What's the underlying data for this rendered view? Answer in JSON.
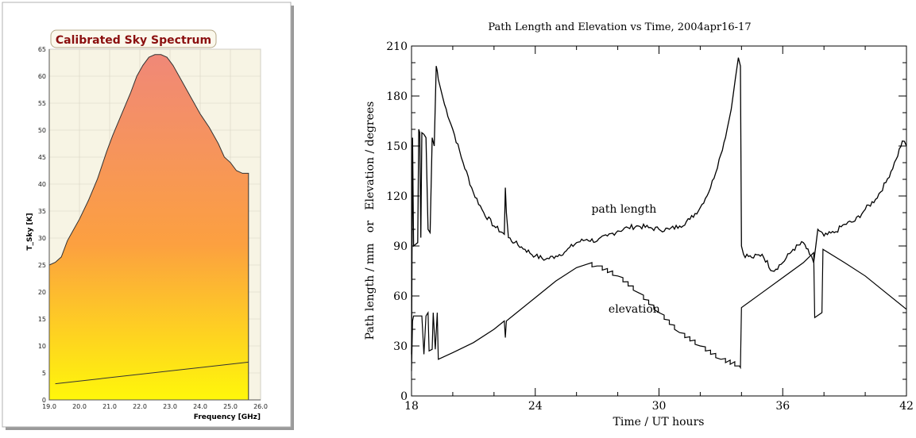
{
  "chart_data": [
    {
      "type": "area",
      "title": "Calibrated Sky Spectrum",
      "xlabel": "Frequency [GHz]",
      "ylabel": "T_Sky [K]",
      "xlim": [
        19.0,
        26.0
      ],
      "ylim": [
        0,
        65
      ],
      "x_ticks": [
        "19.0",
        "20.0",
        "21.0",
        "22.0",
        "23.0",
        "24.0",
        "25.0",
        "26.0"
      ],
      "y_ticks": [
        "0",
        "5",
        "10",
        "15",
        "20",
        "25",
        "30",
        "35",
        "40",
        "45",
        "50",
        "55",
        "60",
        "65"
      ],
      "grid": true,
      "colors": {
        "area_top": "#f08878",
        "area_mid": "#fca040",
        "area_bottom": "#fff70a",
        "plot_bg": "#f7f4e4",
        "title": "#8b1010"
      },
      "series": [
        {
          "values_x": [
            19.0,
            19.2,
            19.4,
            19.6,
            19.8,
            20.0,
            20.3,
            20.6,
            20.9,
            21.1,
            21.4,
            21.7,
            21.9,
            22.1,
            22.3,
            22.5,
            22.7,
            22.9,
            23.1,
            23.4,
            23.7,
            24.0,
            24.3,
            24.6,
            24.8,
            25.0,
            25.2,
            25.4,
            25.6
          ],
          "values_y": [
            25,
            25.5,
            26.5,
            29.5,
            31.5,
            33.5,
            37,
            41,
            46,
            49,
            53,
            57,
            60,
            62,
            63.5,
            64,
            64,
            63.5,
            62,
            59,
            56,
            53,
            50.5,
            47.5,
            45,
            44,
            42.5,
            42,
            42
          ]
        },
        {
          "values_x": [
            19.2,
            25.6
          ],
          "values_y": [
            3.0,
            7.0
          ]
        }
      ]
    },
    {
      "type": "line",
      "title": "Path Length and Elevation vs Time, 2004apr16-17",
      "xlabel": "Time / UT hours",
      "ylabel": "Path length / mm   or   Elevation / degrees",
      "xlim": [
        18,
        42
      ],
      "ylim": [
        0,
        210
      ],
      "x_ticks": [
        "18",
        "24",
        "30",
        "36",
        "42"
      ],
      "y_ticks": [
        "0",
        "30",
        "60",
        "90",
        "120",
        "150",
        "180",
        "210"
      ],
      "grid": false,
      "annotations": [
        "path length",
        "elevation"
      ],
      "series": [
        {
          "x": [
            18.0,
            18.05,
            18.1,
            18.2,
            18.3,
            18.35,
            18.4,
            18.45,
            18.5,
            18.6,
            18.7,
            18.8,
            18.9,
            19.0,
            19.1,
            19.2,
            19.25,
            19.3,
            19.4,
            19.6,
            20.0,
            20.5,
            21.0,
            21.5,
            22.0,
            22.5,
            22.55,
            22.6,
            22.7,
            23.0,
            23.5,
            24.0,
            24.5,
            25.0,
            25.5,
            26.0,
            26.5,
            27.0,
            27.5,
            28.0,
            28.5,
            29.0,
            29.5,
            30.0,
            30.5,
            31.0,
            31.5,
            32.0,
            32.5,
            33.0,
            33.3,
            33.5,
            33.7,
            33.85,
            33.95,
            34.0,
            34.1,
            34.5,
            35.0,
            35.5,
            36.0,
            36.5,
            37.0,
            37.3,
            37.5,
            37.7,
            38.0,
            38.5,
            39.0,
            39.5,
            40.0,
            40.5,
            41.0,
            41.5,
            41.8,
            42.0
          ],
          "y": [
            25,
            155,
            90,
            91,
            92,
            160,
            158,
            95,
            158,
            157,
            155,
            100,
            98,
            155,
            150,
            198,
            195,
            190,
            185,
            175,
            160,
            140,
            122,
            110,
            102,
            97,
            125,
            110,
            95,
            92,
            88,
            84,
            82,
            84,
            87,
            92,
            94,
            93,
            96,
            99,
            101,
            102,
            101,
            100,
            100,
            102,
            106,
            113,
            125,
            145,
            160,
            172,
            190,
            203,
            198,
            90,
            85,
            83,
            85,
            75,
            80,
            88,
            92,
            85,
            80,
            100,
            96,
            98,
            103,
            105,
            112,
            118,
            128,
            142,
            153,
            150
          ]
        },
        {
          "x": [
            18.0,
            18.05,
            18.1,
            18.5,
            18.6,
            18.7,
            18.8,
            18.85,
            19.0,
            19.05,
            19.15,
            19.25,
            19.3,
            20.0,
            21.0,
            22.0,
            22.5,
            22.55,
            22.6,
            23.0,
            24.0,
            25.0,
            26.0,
            26.5,
            27.0,
            28.0,
            29.0,
            30.0,
            31.0,
            32.0,
            33.0,
            33.9,
            33.95,
            34.0,
            35.0,
            36.0,
            37.0,
            37.5,
            37.55,
            37.9,
            37.95,
            39.0,
            40.0,
            41.0,
            42.0
          ],
          "y": [
            15,
            45,
            48,
            48,
            25,
            48,
            50,
            27,
            28,
            50,
            28,
            50,
            22,
            26,
            32,
            40,
            45,
            35,
            45,
            49,
            59,
            69,
            77,
            79,
            78,
            72,
            62,
            50,
            38,
            30,
            22,
            18,
            17,
            53,
            62,
            71,
            80,
            86,
            47,
            50,
            88,
            80,
            72,
            62,
            52
          ]
        }
      ]
    }
  ]
}
